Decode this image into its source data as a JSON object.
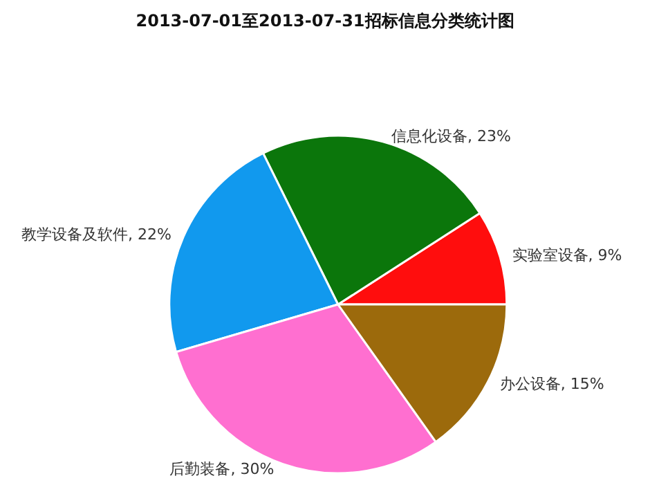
{
  "chart_data": {
    "type": "pie",
    "title": "2013-07-01至2013-07-31招标信息分类统计图",
    "categories": [
      "实验室设备",
      "信息化设备",
      "教学设备及软件",
      "后勤装备",
      "办公设备"
    ],
    "values": [
      9,
      23,
      22,
      30,
      15
    ],
    "value_labels": [
      "9%",
      "23%",
      "22%",
      "30%",
      "15%"
    ],
    "colors": [
      "#ff0d0d",
      "#0b760b",
      "#1199ee",
      "#ff6fd0",
      "#9c6a0c"
    ]
  }
}
